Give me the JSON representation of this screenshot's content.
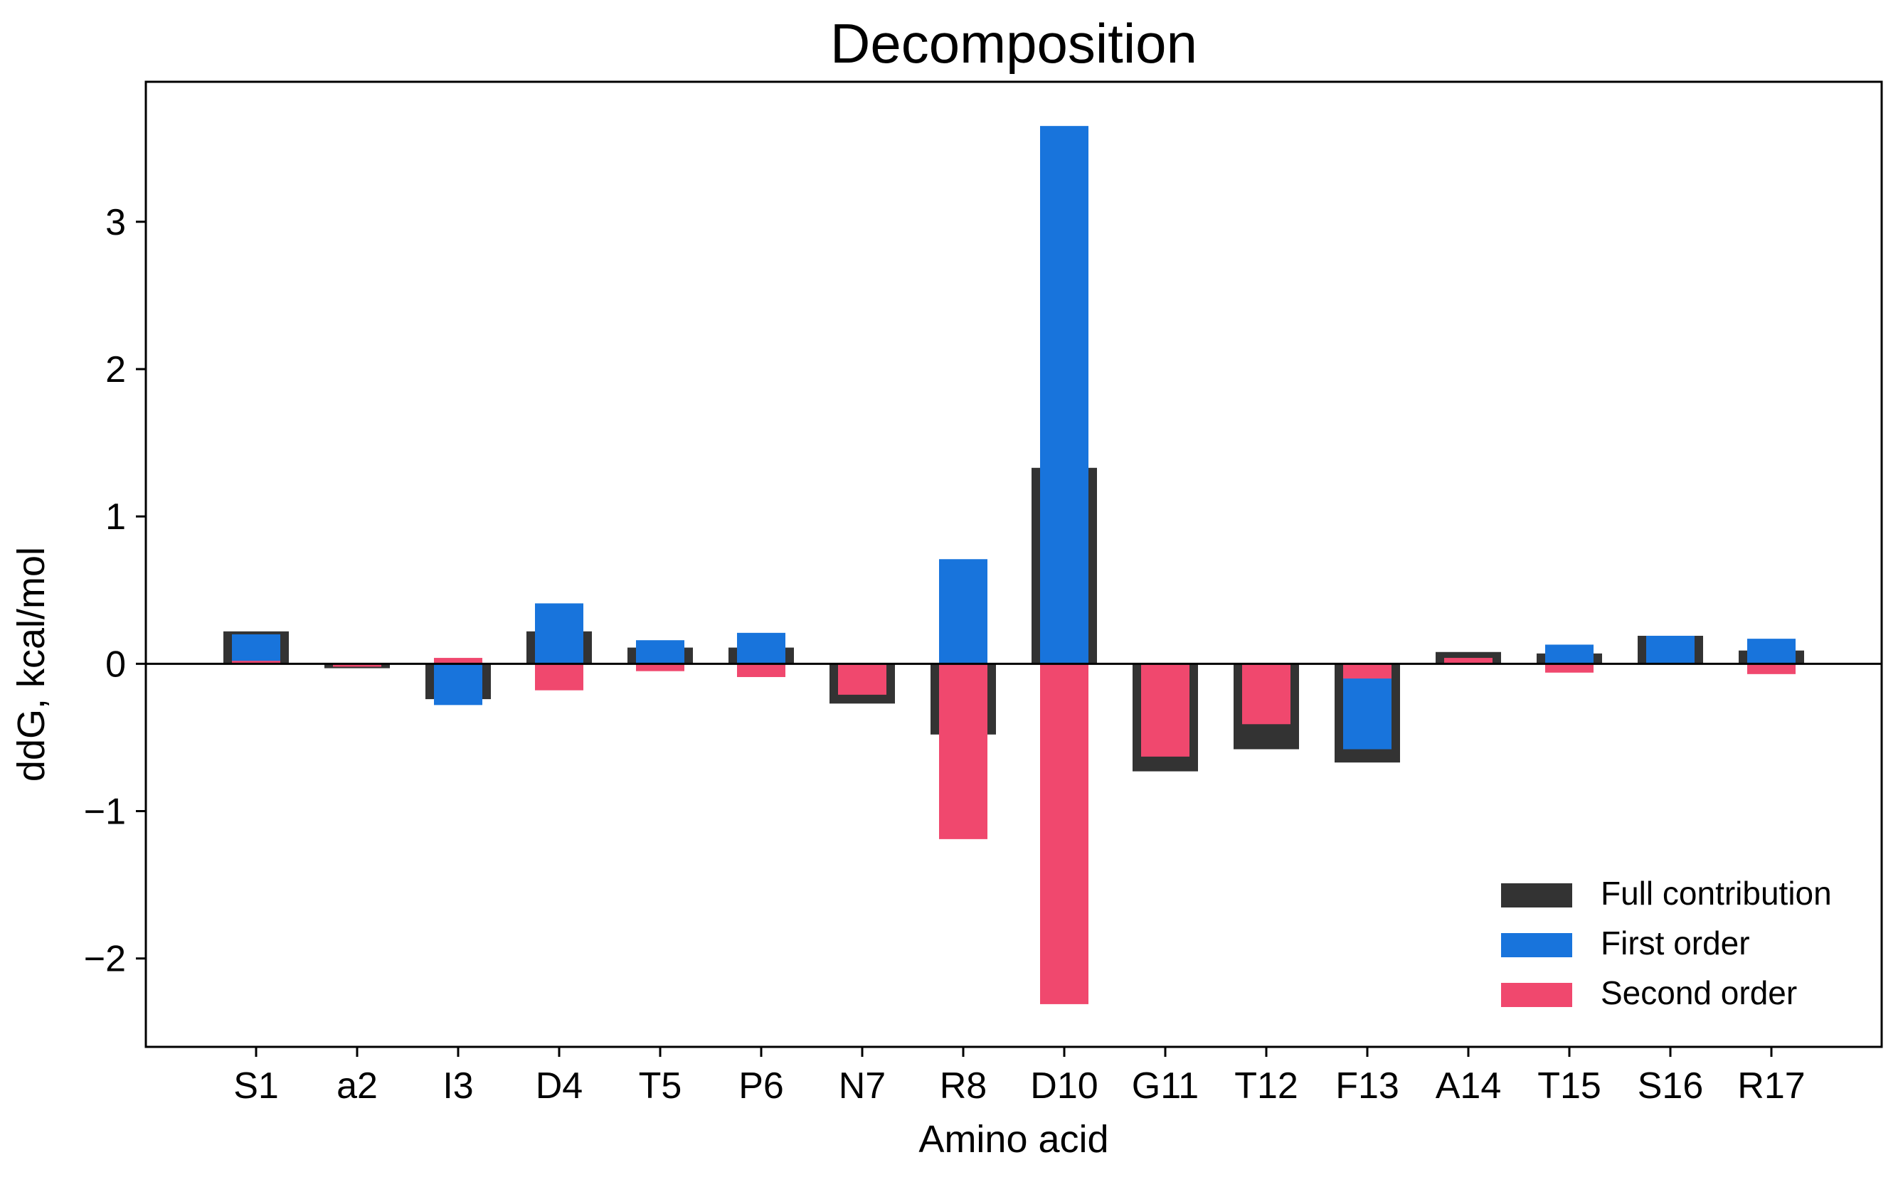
{
  "chart_data": {
    "type": "bar",
    "title": "Decomposition",
    "xlabel": "Amino acid",
    "ylabel": "ddG, kcal/mol",
    "ylim": [
      -2.6,
      3.95
    ],
    "yticks": [
      -2,
      -1,
      0,
      1,
      2,
      3
    ],
    "ytick_labels": [
      "−2",
      "−1",
      "0",
      "1",
      "2",
      "3"
    ],
    "grid": false,
    "legend_position": "lower-right",
    "categories": [
      "S1",
      "a2",
      "I3",
      "D4",
      "T5",
      "P6",
      "N7",
      "R8",
      "D10",
      "G11",
      "T12",
      "F13",
      "A14",
      "T15",
      "S16",
      "R17"
    ],
    "series": [
      {
        "name": "Full contribution",
        "color": "#333333",
        "values": [
          0.22,
          -0.03,
          -0.24,
          0.22,
          0.11,
          0.11,
          -0.27,
          -0.48,
          1.33,
          -0.73,
          -0.58,
          -0.67,
          0.08,
          0.07,
          0.19,
          0.09
        ]
      },
      {
        "name": "First order",
        "color": "#1874dc",
        "values": [
          0.2,
          -0.01,
          -0.28,
          0.41,
          0.16,
          0.21,
          0.0,
          0.71,
          3.65,
          0.0,
          0.0,
          -0.58,
          0.01,
          0.13,
          0.19,
          0.17
        ]
      },
      {
        "name": "Second order",
        "color": "#f0486e",
        "values": [
          0.02,
          -0.02,
          0.04,
          -0.18,
          -0.05,
          -0.09,
          -0.21,
          -1.19,
          -2.31,
          -0.63,
          -0.41,
          -0.1,
          0.04,
          -0.06,
          0.0,
          -0.07
        ]
      }
    ]
  }
}
